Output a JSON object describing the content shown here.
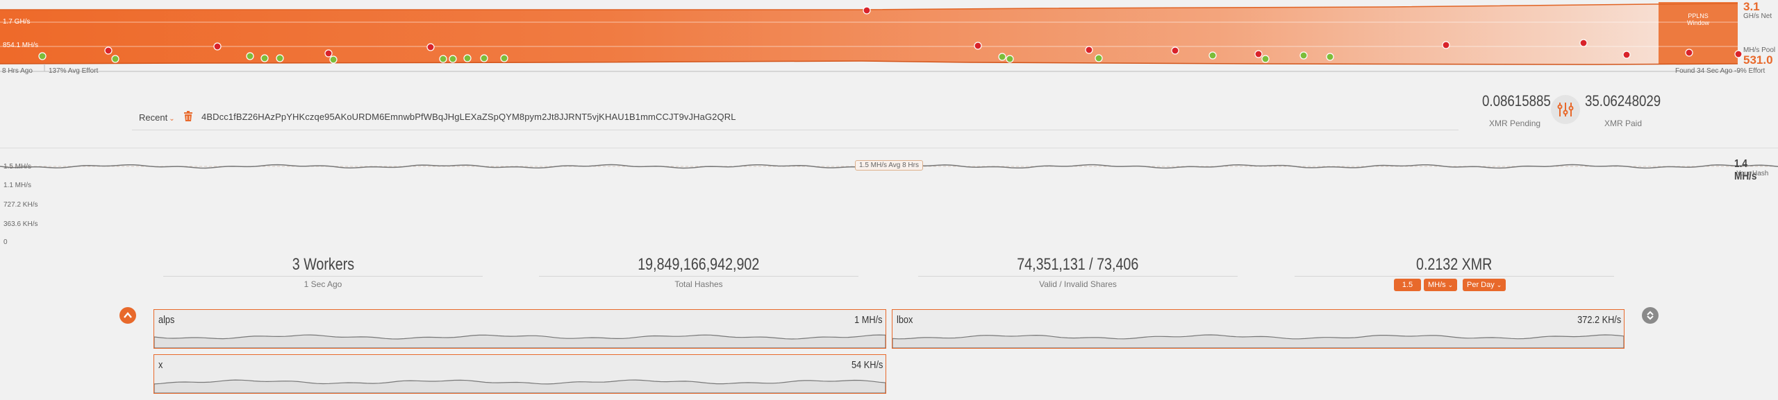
{
  "pool_chart": {
    "y_labels": [
      "1.7 GH/s",
      "854.1 MH/s"
    ],
    "left_bottom_label": "8 Hrs Ago",
    "avg_effort": "137% Avg Effort",
    "found_label": "Found 34 Sec Ago",
    "effort_right": "-9% Effort",
    "pplns_label_1": "PPLNS",
    "pplns_label_2": "Window",
    "net_value": "3.1",
    "net_unit": "GH/s Net",
    "pool_unit": "MH/s Pool",
    "pool_value": "531.0",
    "colors": {
      "accent": "#e8692b",
      "green_dot": "#7cbd3a",
      "red_dot": "#d9232a"
    }
  },
  "wallet": {
    "recent_label": "Recent",
    "address": "4BDcc1fBZ26HAzPpYHKczqe95AKoURDM6EmnwbPfWBqJHgLEXaZSpQYM8pym2Jt8JJRNT5vjKHAU1B1mmCCJT9vJHaG2QRL",
    "pending_value": "0.08615885",
    "pending_label": "XMR Pending",
    "paid_value": "35.06248029",
    "paid_label": "XMR Paid"
  },
  "hash_chart": {
    "ticks": [
      "1.5 MH/s",
      "1.1 MH/s",
      "727.2 KH/s",
      "363.6 KH/s",
      "0"
    ],
    "avg_badge": "1.5 MH/s Avg 8 Hrs",
    "your_hash_value": "1.4 MH/s",
    "your_hash_label": "Your Hash"
  },
  "stats": [
    {
      "value": "3 Workers",
      "label": "1 Sec Ago"
    },
    {
      "value": "19,849,166,942,902",
      "label": "Total Hashes"
    },
    {
      "value": "74,351,131 / 73,406",
      "label": "Valid / Invalid Shares"
    },
    {
      "value": "0.2132 XMR",
      "label": ""
    }
  ],
  "calculator": {
    "hashrate": "1.5",
    "unit": "MH/s",
    "period": "Per Day"
  },
  "workers": [
    {
      "name": "alps",
      "rate": "1 MH/s"
    },
    {
      "name": "lbox",
      "rate": "372.2 KH/s"
    },
    {
      "name": "x",
      "rate": "54 KH/s"
    }
  ]
}
